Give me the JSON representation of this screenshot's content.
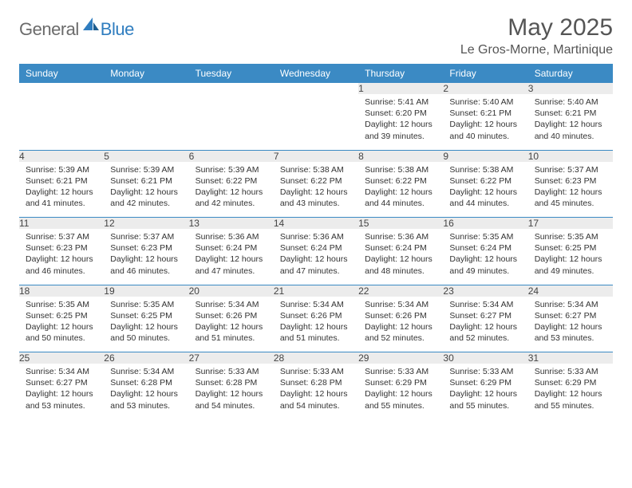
{
  "brand": {
    "text1": "General",
    "text2": "Blue"
  },
  "title": "May 2025",
  "location": "Le Gros-Morne, Martinique",
  "colors": {
    "header_bg": "#3b8ac4",
    "header_text": "#ffffff",
    "daynum_bg": "#ececec",
    "rule": "#3b8ac4",
    "logo_gray": "#6b6b6b",
    "logo_blue": "#2f7dbf"
  },
  "weekdays": [
    "Sunday",
    "Monday",
    "Tuesday",
    "Wednesday",
    "Thursday",
    "Friday",
    "Saturday"
  ],
  "weeks": [
    [
      null,
      null,
      null,
      null,
      {
        "n": "1",
        "sr": "5:41 AM",
        "ss": "6:20 PM",
        "dl": "12 hours and 39 minutes."
      },
      {
        "n": "2",
        "sr": "5:40 AM",
        "ss": "6:21 PM",
        "dl": "12 hours and 40 minutes."
      },
      {
        "n": "3",
        "sr": "5:40 AM",
        "ss": "6:21 PM",
        "dl": "12 hours and 40 minutes."
      }
    ],
    [
      {
        "n": "4",
        "sr": "5:39 AM",
        "ss": "6:21 PM",
        "dl": "12 hours and 41 minutes."
      },
      {
        "n": "5",
        "sr": "5:39 AM",
        "ss": "6:21 PM",
        "dl": "12 hours and 42 minutes."
      },
      {
        "n": "6",
        "sr": "5:39 AM",
        "ss": "6:22 PM",
        "dl": "12 hours and 42 minutes."
      },
      {
        "n": "7",
        "sr": "5:38 AM",
        "ss": "6:22 PM",
        "dl": "12 hours and 43 minutes."
      },
      {
        "n": "8",
        "sr": "5:38 AM",
        "ss": "6:22 PM",
        "dl": "12 hours and 44 minutes."
      },
      {
        "n": "9",
        "sr": "5:38 AM",
        "ss": "6:22 PM",
        "dl": "12 hours and 44 minutes."
      },
      {
        "n": "10",
        "sr": "5:37 AM",
        "ss": "6:23 PM",
        "dl": "12 hours and 45 minutes."
      }
    ],
    [
      {
        "n": "11",
        "sr": "5:37 AM",
        "ss": "6:23 PM",
        "dl": "12 hours and 46 minutes."
      },
      {
        "n": "12",
        "sr": "5:37 AM",
        "ss": "6:23 PM",
        "dl": "12 hours and 46 minutes."
      },
      {
        "n": "13",
        "sr": "5:36 AM",
        "ss": "6:24 PM",
        "dl": "12 hours and 47 minutes."
      },
      {
        "n": "14",
        "sr": "5:36 AM",
        "ss": "6:24 PM",
        "dl": "12 hours and 47 minutes."
      },
      {
        "n": "15",
        "sr": "5:36 AM",
        "ss": "6:24 PM",
        "dl": "12 hours and 48 minutes."
      },
      {
        "n": "16",
        "sr": "5:35 AM",
        "ss": "6:24 PM",
        "dl": "12 hours and 49 minutes."
      },
      {
        "n": "17",
        "sr": "5:35 AM",
        "ss": "6:25 PM",
        "dl": "12 hours and 49 minutes."
      }
    ],
    [
      {
        "n": "18",
        "sr": "5:35 AM",
        "ss": "6:25 PM",
        "dl": "12 hours and 50 minutes."
      },
      {
        "n": "19",
        "sr": "5:35 AM",
        "ss": "6:25 PM",
        "dl": "12 hours and 50 minutes."
      },
      {
        "n": "20",
        "sr": "5:34 AM",
        "ss": "6:26 PM",
        "dl": "12 hours and 51 minutes."
      },
      {
        "n": "21",
        "sr": "5:34 AM",
        "ss": "6:26 PM",
        "dl": "12 hours and 51 minutes."
      },
      {
        "n": "22",
        "sr": "5:34 AM",
        "ss": "6:26 PM",
        "dl": "12 hours and 52 minutes."
      },
      {
        "n": "23",
        "sr": "5:34 AM",
        "ss": "6:27 PM",
        "dl": "12 hours and 52 minutes."
      },
      {
        "n": "24",
        "sr": "5:34 AM",
        "ss": "6:27 PM",
        "dl": "12 hours and 53 minutes."
      }
    ],
    [
      {
        "n": "25",
        "sr": "5:34 AM",
        "ss": "6:27 PM",
        "dl": "12 hours and 53 minutes."
      },
      {
        "n": "26",
        "sr": "5:34 AM",
        "ss": "6:28 PM",
        "dl": "12 hours and 53 minutes."
      },
      {
        "n": "27",
        "sr": "5:33 AM",
        "ss": "6:28 PM",
        "dl": "12 hours and 54 minutes."
      },
      {
        "n": "28",
        "sr": "5:33 AM",
        "ss": "6:28 PM",
        "dl": "12 hours and 54 minutes."
      },
      {
        "n": "29",
        "sr": "5:33 AM",
        "ss": "6:29 PM",
        "dl": "12 hours and 55 minutes."
      },
      {
        "n": "30",
        "sr": "5:33 AM",
        "ss": "6:29 PM",
        "dl": "12 hours and 55 minutes."
      },
      {
        "n": "31",
        "sr": "5:33 AM",
        "ss": "6:29 PM",
        "dl": "12 hours and 55 minutes."
      }
    ]
  ],
  "labels": {
    "sunrise": "Sunrise: ",
    "sunset": "Sunset: ",
    "daylight": "Daylight: "
  }
}
